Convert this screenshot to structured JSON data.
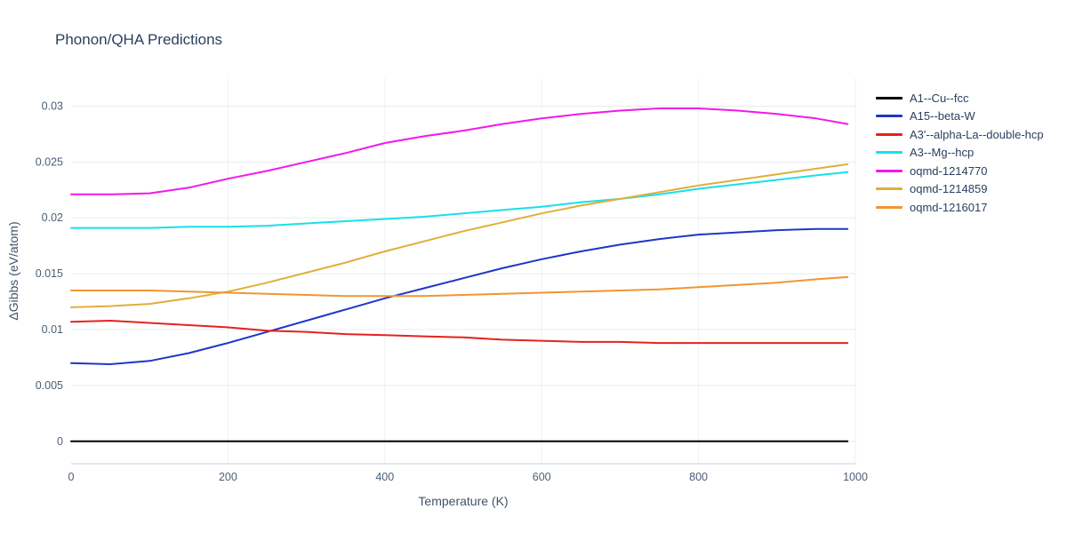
{
  "chart_data": {
    "type": "line",
    "title": "Phonon/QHA Predictions",
    "xlabel": "Temperature (K)",
    "ylabel": "ΔGibbs (eV/atom)",
    "xlim": [
      0,
      1000
    ],
    "ylim": [
      -0.002,
      0.0325
    ],
    "xticks": [
      0,
      200,
      400,
      600,
      800,
      1000
    ],
    "xtick_labels": [
      "0",
      "200",
      "400",
      "600",
      "800",
      "1000"
    ],
    "yticks": [
      0,
      0.005,
      0.01,
      0.015,
      0.02,
      0.025,
      0.03
    ],
    "ytick_labels": [
      "0",
      "0.005",
      "0.01",
      "0.015",
      "0.02",
      "0.025",
      "0.03"
    ],
    "grid": true,
    "legend_position": "right",
    "colors": {
      "title_text": "#2a3f5f",
      "axis_text": "#42526b",
      "tick_text": "#4c5d78",
      "grid_h": "#e8ecf0",
      "grid_v": "#eef1f5",
      "axis_line": "#c9d0d8",
      "background": "#ffffff"
    },
    "x": [
      0,
      50,
      100,
      150,
      200,
      250,
      300,
      350,
      400,
      450,
      500,
      550,
      600,
      650,
      700,
      750,
      800,
      850,
      900,
      950,
      990
    ],
    "series": [
      {
        "name": "A1--Cu--fcc",
        "color": "#000000",
        "values": [
          0,
          0,
          0,
          0,
          0,
          0,
          0,
          0,
          0,
          0,
          0,
          0,
          0,
          0,
          0,
          0,
          0,
          0,
          0,
          0,
          0
        ]
      },
      {
        "name": "A15--beta-W",
        "color": "#1f36c7",
        "values": [
          0.007,
          0.0069,
          0.0072,
          0.0079,
          0.0088,
          0.0098,
          0.0108,
          0.0118,
          0.0128,
          0.0137,
          0.0146,
          0.0155,
          0.0163,
          0.017,
          0.0176,
          0.0181,
          0.0185,
          0.0187,
          0.0189,
          0.019,
          0.019
        ]
      },
      {
        "name": "A3'--alpha-La--double-hcp",
        "color": "#e3231e",
        "values": [
          0.0107,
          0.0108,
          0.0106,
          0.0104,
          0.0102,
          0.0099,
          0.0098,
          0.0096,
          0.0095,
          0.0094,
          0.0093,
          0.0091,
          0.009,
          0.0089,
          0.0089,
          0.0088,
          0.0088,
          0.0088,
          0.0088,
          0.0088,
          0.0088
        ]
      },
      {
        "name": "A3--Mg--hcp",
        "color": "#17e0ec",
        "values": [
          0.0191,
          0.0191,
          0.0191,
          0.0192,
          0.0192,
          0.0193,
          0.0195,
          0.0197,
          0.0199,
          0.0201,
          0.0204,
          0.0207,
          0.021,
          0.0214,
          0.0217,
          0.0221,
          0.0226,
          0.023,
          0.0234,
          0.0238,
          0.0241
        ]
      },
      {
        "name": "oqmd-1214770",
        "color": "#f318e8",
        "values": [
          0.0221,
          0.0221,
          0.0222,
          0.0227,
          0.0235,
          0.0242,
          0.025,
          0.0258,
          0.0267,
          0.0273,
          0.0278,
          0.0284,
          0.0289,
          0.0293,
          0.0296,
          0.0298,
          0.0298,
          0.0296,
          0.0293,
          0.0289,
          0.0284
        ]
      },
      {
        "name": "oqmd-1214859",
        "color": "#e0ae3a",
        "values": [
          0.012,
          0.0121,
          0.0123,
          0.0128,
          0.0134,
          0.0142,
          0.0151,
          0.016,
          0.017,
          0.0179,
          0.0188,
          0.0196,
          0.0204,
          0.0211,
          0.0217,
          0.0223,
          0.0229,
          0.0234,
          0.0239,
          0.0244,
          0.0248
        ]
      },
      {
        "name": "oqmd-1216017",
        "color": "#f09630",
        "values": [
          0.0135,
          0.0135,
          0.0135,
          0.0134,
          0.0133,
          0.0132,
          0.0131,
          0.013,
          0.013,
          0.013,
          0.0131,
          0.0132,
          0.0133,
          0.0134,
          0.0135,
          0.0136,
          0.0138,
          0.014,
          0.0142,
          0.0145,
          0.0147
        ]
      }
    ]
  }
}
